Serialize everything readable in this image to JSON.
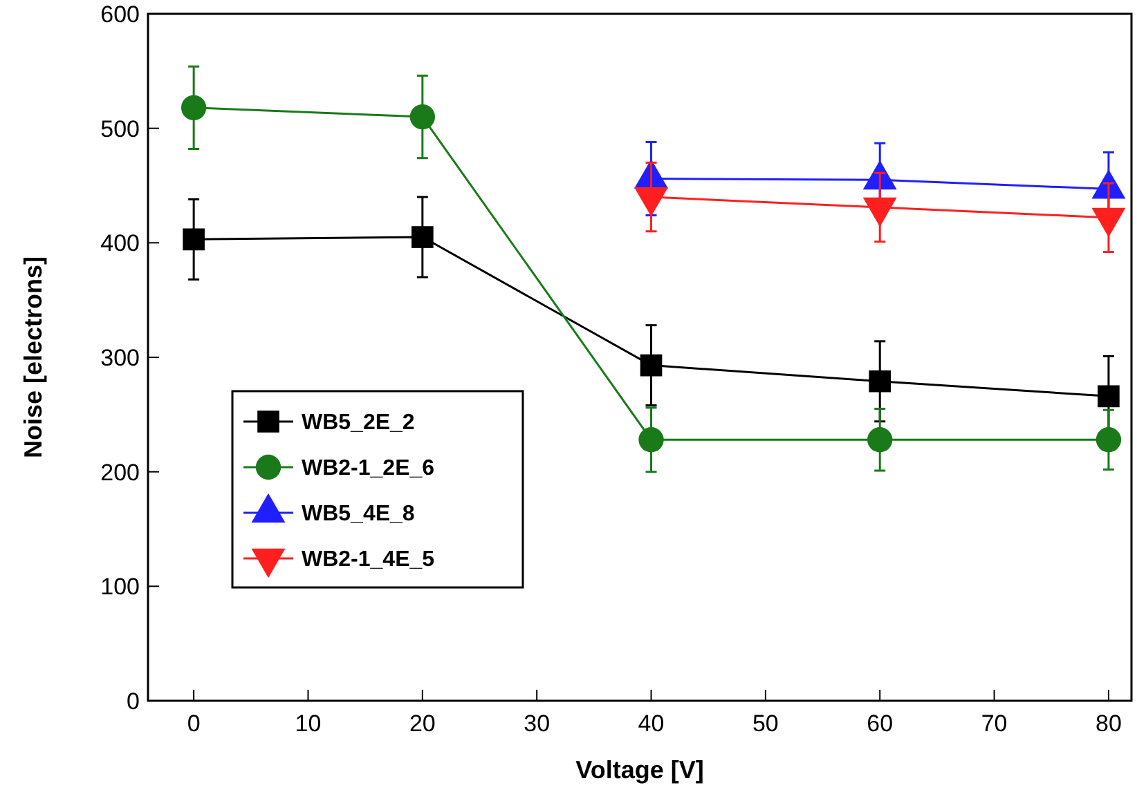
{
  "chart_data": {
    "type": "line",
    "xlabel": "Voltage [V]",
    "ylabel": "Noise [electrons]",
    "x": [
      0,
      20,
      40,
      60,
      80
    ],
    "series": [
      {
        "name": "WB5_2E_2",
        "color": "#000000",
        "marker": "square",
        "values": [
          403,
          405,
          293,
          279,
          266
        ],
        "errors": [
          35,
          35,
          35,
          35,
          35
        ]
      },
      {
        "name": "WB2-1_2E_6",
        "color": "#1a7a1a",
        "marker": "circle",
        "values": [
          518,
          510,
          228,
          228,
          228
        ],
        "errors": [
          36,
          36,
          28,
          27,
          26
        ]
      },
      {
        "name": "WB5_4E_8",
        "color": "#1f1fff",
        "marker": "triangle",
        "x": [
          40,
          60,
          80
        ],
        "values": [
          456,
          455,
          447
        ],
        "errors": [
          32,
          32,
          32
        ]
      },
      {
        "name": "WB2-1_4E_5",
        "color": "#ff1f1f",
        "marker": "triangle-down",
        "x": [
          40,
          60,
          80
        ],
        "values": [
          440,
          431,
          422
        ],
        "errors": [
          30,
          30,
          30
        ]
      }
    ],
    "xlim": [
      -4,
      82
    ],
    "xticks": [
      0,
      10,
      20,
      30,
      40,
      50,
      60,
      70,
      80
    ],
    "ylim": [
      0,
      600
    ],
    "yticks": [
      0,
      100,
      200,
      300,
      400,
      500,
      600
    ],
    "grid": false,
    "legend": "left"
  }
}
